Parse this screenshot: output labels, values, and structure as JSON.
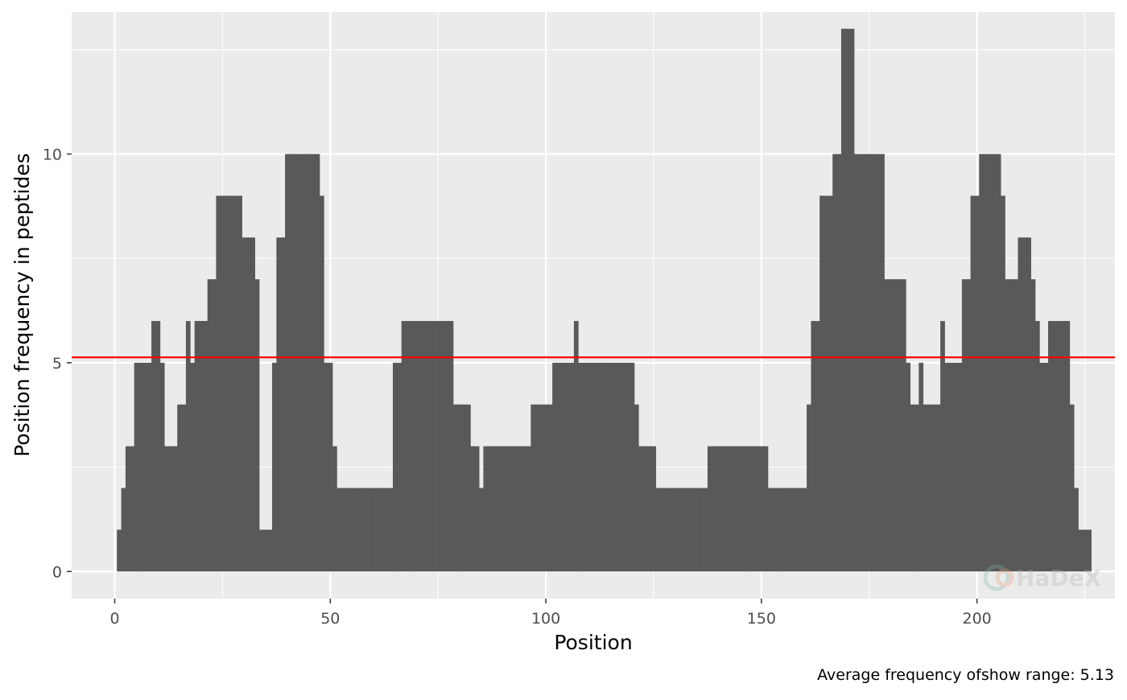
{
  "chart_data": {
    "type": "bar",
    "xlabel": "Position",
    "ylabel": "Position frequency in peptides",
    "caption": "Average frequency ofshow range: 5.13",
    "watermark": "HaDeX",
    "xlim": [
      -10,
      232
    ],
    "ylim": [
      -0.65,
      13.4
    ],
    "x_ticks": [
      0,
      50,
      100,
      150,
      200
    ],
    "y_ticks": [
      0,
      5,
      10
    ],
    "grid": true,
    "average_line": {
      "value": 5.13,
      "color": "#ff0000"
    },
    "bar_color": "#595959",
    "panel_background": "#ebebeb",
    "x_start": 1,
    "values": [
      1,
      2,
      3,
      3,
      5,
      5,
      5,
      5,
      6,
      6,
      5,
      3,
      3,
      3,
      4,
      4,
      6,
      5,
      6,
      6,
      6,
      7,
      7,
      9,
      9,
      9,
      9,
      9,
      9,
      8,
      8,
      8,
      7,
      1,
      1,
      1,
      5,
      8,
      8,
      10,
      10,
      10,
      10,
      10,
      10,
      10,
      10,
      9,
      5,
      5,
      3,
      2,
      2,
      2,
      2,
      2,
      2,
      2,
      2,
      2,
      2,
      2,
      2,
      2,
      5,
      5,
      6,
      6,
      6,
      6,
      6,
      6,
      6,
      6,
      6,
      6,
      6,
      6,
      4,
      4,
      4,
      4,
      3,
      3,
      2,
      3,
      3,
      3,
      3,
      3,
      3,
      3,
      3,
      3,
      3,
      3,
      4,
      4,
      4,
      4,
      4,
      5,
      5,
      5,
      5,
      5,
      6,
      5,
      5,
      5,
      5,
      5,
      5,
      5,
      5,
      5,
      5,
      5,
      5,
      5,
      4,
      3,
      3,
      3,
      3,
      2,
      2,
      2,
      2,
      2,
      2,
      2,
      2,
      2,
      2,
      2,
      2,
      3,
      3,
      3,
      3,
      3,
      3,
      3,
      3,
      3,
      3,
      3,
      3,
      3,
      3,
      2,
      2,
      2,
      2,
      2,
      2,
      2,
      2,
      2,
      4,
      6,
      6,
      9,
      9,
      9,
      10,
      10,
      13,
      13,
      13,
      10,
      10,
      10,
      10,
      10,
      10,
      10,
      7,
      7,
      7,
      7,
      7,
      5,
      4,
      4,
      5,
      4,
      4,
      4,
      4,
      6,
      5,
      5,
      5,
      5,
      7,
      7,
      9,
      9,
      10,
      10,
      10,
      10,
      10,
      9,
      7,
      7,
      7,
      8,
      8,
      8,
      7,
      6,
      5,
      5,
      6,
      6,
      6,
      6,
      6,
      4,
      2,
      1,
      1,
      1
    ]
  }
}
